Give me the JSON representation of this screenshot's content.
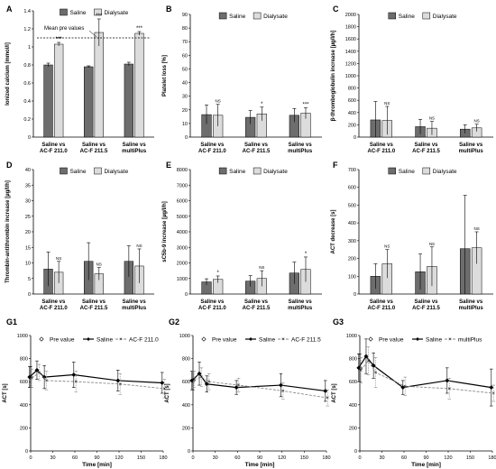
{
  "colors": {
    "saline": "#6d6d6d",
    "dialysate": "#dcdcdc",
    "edge": "#000000",
    "dashed_series": "#8a8a8a"
  },
  "chart_data": [
    {
      "id": "A",
      "type": "bar",
      "label": "A",
      "ylabel": "Ionized calcium [mmol/l]",
      "ylim": [
        0,
        1.4
      ],
      "yticks": [
        "0",
        "0.2",
        "0.4",
        "0.6",
        "0.8",
        "1",
        "1.2",
        "1.4"
      ],
      "categories": [
        [
          "Saline vs",
          "AC-F 211.0"
        ],
        [
          "Saline vs",
          "AC-F 211.5"
        ],
        [
          "Saline vs",
          "multiPlus"
        ]
      ],
      "series": [
        {
          "name": "Saline",
          "values": [
            0.8,
            0.78,
            0.81
          ],
          "err": [
            0.02,
            0.01,
            0.02
          ],
          "sig": [
            "",
            "",
            ""
          ]
        },
        {
          "name": "Dialysate",
          "values": [
            1.03,
            1.16,
            1.15
          ],
          "err": [
            0.02,
            0.15,
            0.02
          ],
          "sig": [
            "***",
            "***",
            "***"
          ]
        }
      ],
      "annotation": {
        "text": "Mean pre values",
        "y": 1.1
      },
      "sig_between": [
        "***",
        "",
        ""
      ]
    },
    {
      "id": "B",
      "type": "bar",
      "label": "B",
      "ylabel": "Platelet loss [%]",
      "ylim": [
        0,
        90
      ],
      "yticks": [
        "0",
        "10",
        "20",
        "30",
        "40",
        "50",
        "60",
        "70",
        "80",
        "90"
      ],
      "categories": [
        [
          "Saline vs",
          "AC-F 211.0"
        ],
        [
          "Saline vs",
          "AC-F 211.5"
        ],
        [
          "Saline vs",
          "multiPlus"
        ]
      ],
      "series": [
        {
          "name": "Saline",
          "values": [
            16.5,
            14.5,
            16
          ],
          "err": [
            7,
            5,
            5
          ],
          "sig": [
            "",
            "",
            ""
          ]
        },
        {
          "name": "Dialysate",
          "values": [
            16,
            17,
            17.5
          ],
          "err": [
            8,
            5,
            4
          ],
          "sig": [
            "NS",
            "*",
            "***"
          ]
        }
      ]
    },
    {
      "id": "C",
      "type": "bar",
      "label": "C",
      "ylabel": "β-thromboglobulin increase [µg/l/h]",
      "ylim": [
        0,
        2000
      ],
      "yticks": [
        "0",
        "200",
        "400",
        "600",
        "800",
        "1000",
        "1200",
        "1400",
        "1600",
        "1800",
        "2000"
      ],
      "categories": [
        [
          "Saline vs",
          "AC-F 211.0"
        ],
        [
          "Saline vs",
          "AC-F 211.5"
        ],
        [
          "Saline vs",
          "multiPlus"
        ]
      ],
      "series": [
        {
          "name": "Saline",
          "values": [
            280,
            170,
            130
          ],
          "err": [
            300,
            120,
            70
          ],
          "sig": [
            "",
            "",
            ""
          ]
        },
        {
          "name": "Dialysate",
          "values": [
            270,
            145,
            150
          ],
          "err": [
            230,
            110,
            60
          ],
          "sig": [
            "NS",
            "NS",
            "NS"
          ]
        }
      ]
    },
    {
      "id": "D",
      "type": "bar",
      "label": "D",
      "ylabel": "Thrombin-antithrombin increase [µg/l/h]",
      "ylim": [
        0,
        40
      ],
      "yticks": [
        "0",
        "5",
        "10",
        "15",
        "20",
        "25",
        "30",
        "35",
        "40"
      ],
      "categories": [
        [
          "Saline vs",
          "AC-F 211.0"
        ],
        [
          "Saline vs",
          "AC-F 211.5"
        ],
        [
          "Saline vs",
          "multiPlus"
        ]
      ],
      "series": [
        {
          "name": "Saline",
          "values": [
            8,
            10.5,
            10.5
          ],
          "err": [
            5.5,
            6,
            5
          ],
          "sig": [
            "",
            "",
            ""
          ]
        },
        {
          "name": "Dialysate",
          "values": [
            7,
            6.5,
            9
          ],
          "err": [
            3.5,
            2,
            5.5
          ],
          "sig": [
            "NS",
            "NS",
            "NS"
          ]
        }
      ]
    },
    {
      "id": "E",
      "type": "bar",
      "label": "E",
      "ylabel": "sC5b-9 increase [µg/l/h]",
      "ylim": [
        0,
        8000
      ],
      "yticks": [
        "0",
        "1000",
        "2000",
        "3000",
        "4000",
        "5000",
        "6000",
        "7000",
        "8000"
      ],
      "categories": [
        [
          "Saline vs",
          "AC-F 211.0"
        ],
        [
          "Saline vs",
          "AC-F 211.5"
        ],
        [
          "Saline vs",
          "multiPlus"
        ]
      ],
      "series": [
        {
          "name": "Saline",
          "values": [
            780,
            830,
            1350
          ],
          "err": [
            200,
            350,
            700
          ],
          "sig": [
            "",
            "",
            ""
          ]
        },
        {
          "name": "Dialysate",
          "values": [
            940,
            1000,
            1580
          ],
          "err": [
            220,
            500,
            800
          ],
          "sig": [
            "*",
            "NS",
            "*"
          ]
        }
      ]
    },
    {
      "id": "F",
      "type": "bar",
      "label": "F",
      "ylabel": "ACT decrease [s]",
      "ylim": [
        0,
        700
      ],
      "yticks": [
        "0",
        "100",
        "200",
        "300",
        "400",
        "500",
        "600",
        "700"
      ],
      "categories": [
        [
          "Saline vs",
          "AC-F 211.0"
        ],
        [
          "Saline vs",
          "AC-F 211.5"
        ],
        [
          "Saline vs",
          "multiPlus"
        ]
      ],
      "series": [
        {
          "name": "Saline",
          "values": [
            100,
            125,
            255
          ],
          "err": [
            70,
            100,
            300
          ],
          "sig": [
            "",
            "",
            ""
          ]
        },
        {
          "name": "Dialysate",
          "values": [
            170,
            155,
            260
          ],
          "err": [
            80,
            110,
            90
          ],
          "sig": [
            "NS",
            "NS",
            "NS"
          ]
        }
      ]
    },
    {
      "id": "G1",
      "type": "line",
      "label": "G1",
      "ylabel": "ACT [s]",
      "xlabel": "Time [min]",
      "ylim": [
        0,
        1000
      ],
      "yticks": [
        "0",
        "200",
        "400",
        "600",
        "800",
        "1000"
      ],
      "xlim": [
        0,
        180
      ],
      "xticks": [
        "0",
        "30",
        "60",
        "90",
        "120",
        "150",
        "180"
      ],
      "series": [
        {
          "name": "Pre value",
          "style": "marker",
          "x": [
            0
          ],
          "y": [
            640
          ],
          "err": [
            90
          ]
        },
        {
          "name": "Saline",
          "style": "solid",
          "x": [
            0,
            10,
            20,
            60,
            120,
            180
          ],
          "y": [
            640,
            700,
            640,
            660,
            610,
            590
          ],
          "err": [
            90,
            80,
            100,
            110,
            90,
            90
          ]
        },
        {
          "name": "AC-F 211.0",
          "style": "dashed",
          "x": [
            0,
            10,
            20,
            60,
            120,
            180
          ],
          "y": [
            630,
            680,
            610,
            600,
            580,
            540
          ],
          "err": [
            80,
            70,
            80,
            90,
            90,
            80
          ]
        }
      ]
    },
    {
      "id": "G2",
      "type": "line",
      "label": "G2",
      "ylabel": "ACT [s]",
      "xlabel": "Time [min]",
      "ylim": [
        0,
        1000
      ],
      "yticks": [
        "0",
        "200",
        "400",
        "600",
        "800",
        "1000"
      ],
      "xlim": [
        0,
        180
      ],
      "xticks": [
        "0",
        "30",
        "60",
        "90",
        "120",
        "150",
        "180"
      ],
      "series": [
        {
          "name": "Pre value",
          "style": "marker",
          "x": [
            0
          ],
          "y": [
            610
          ],
          "err": [
            80
          ]
        },
        {
          "name": "Saline",
          "style": "solid",
          "x": [
            0,
            10,
            20,
            60,
            120,
            180
          ],
          "y": [
            610,
            670,
            580,
            550,
            570,
            520
          ],
          "err": [
            80,
            100,
            70,
            60,
            100,
            90
          ]
        },
        {
          "name": "AC-F 211.5",
          "style": "dashed",
          "x": [
            0,
            10,
            20,
            60,
            120,
            180
          ],
          "y": [
            620,
            640,
            600,
            570,
            520,
            460
          ],
          "err": [
            70,
            80,
            70,
            60,
            70,
            70
          ]
        }
      ]
    },
    {
      "id": "G3",
      "type": "line",
      "label": "G3",
      "ylabel": "ACT [s]",
      "xlabel": "Time [min]",
      "ylim": [
        0,
        1000
      ],
      "yticks": [
        "0",
        "200",
        "400",
        "600",
        "800",
        "1000"
      ],
      "xlim": [
        0,
        180
      ],
      "xticks": [
        "0",
        "30",
        "60",
        "90",
        "120",
        "150",
        "180"
      ],
      "series": [
        {
          "name": "Pre value",
          "style": "marker",
          "x": [
            0
          ],
          "y": [
            720
          ],
          "err": [
            120
          ]
        },
        {
          "name": "Saline",
          "style": "solid",
          "x": [
            0,
            10,
            20,
            60,
            120,
            180
          ],
          "y": [
            720,
            820,
            740,
            550,
            610,
            550
          ],
          "err": [
            120,
            150,
            110,
            60,
            110,
            160
          ]
        },
        {
          "name": "multiPlus",
          "style": "dashed",
          "x": [
            0,
            10,
            20,
            60,
            120,
            180
          ],
          "y": [
            700,
            780,
            680,
            560,
            540,
            500
          ],
          "err": [
            110,
            120,
            130,
            80,
            90,
            70
          ]
        }
      ]
    }
  ]
}
